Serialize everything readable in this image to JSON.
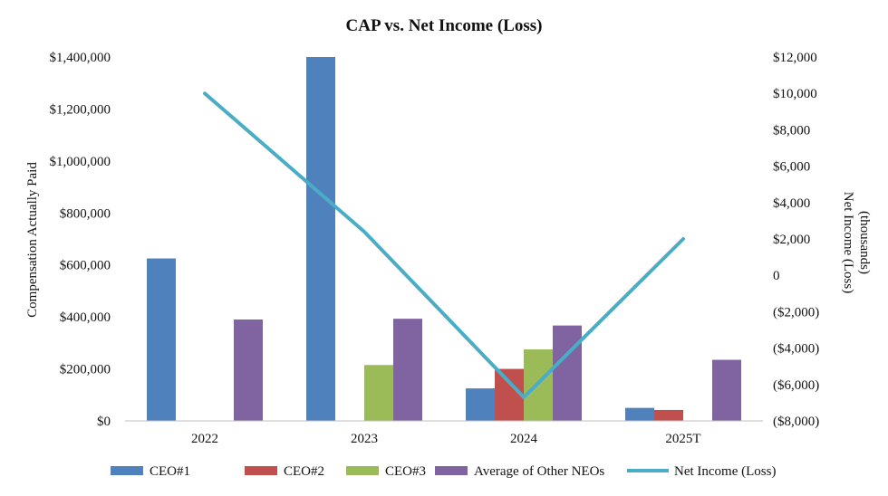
{
  "chart_data": {
    "type": "bar",
    "title": "CAP vs. Net Income (Loss)",
    "categories": [
      "2022",
      "2023",
      "2024",
      "2025T"
    ],
    "ylabel": "Compensation Actually Paid",
    "y2label_line1": "Net Income (Loss)",
    "y2label_line2": "(thousands)",
    "ylim": [
      0,
      1400000
    ],
    "y2lim": [
      -8000,
      12000
    ],
    "yticks": [
      "$0",
      "$200,000",
      "$400,000",
      "$600,000",
      "$800,000",
      "$1,000,000",
      "$1,200,000",
      "$1,400,000"
    ],
    "y2ticks": [
      "($8,000)",
      "($6,000)",
      "($4,000)",
      "($2,000)",
      "0",
      "$2,000",
      "$4,000",
      "$6,000",
      "$8,000",
      "$10,000",
      "$12,000"
    ],
    "series": [
      {
        "name": "CEO#1",
        "color": "#4f81bd",
        "values": [
          625000,
          1400000,
          125000,
          50000
        ]
      },
      {
        "name": "CEO#2",
        "color": "#c0504d",
        "values": [
          null,
          null,
          200000,
          42000
        ]
      },
      {
        "name": "CEO#3",
        "color": "#9bbb59",
        "values": [
          null,
          215000,
          275000,
          null
        ]
      },
      {
        "name": "Average of Other NEOs",
        "color": "#8064a2",
        "values": [
          390000,
          393000,
          367000,
          235000
        ]
      }
    ],
    "line_series": {
      "name": "Net Income (Loss)",
      "color": "#4bacc6",
      "axis": "secondary",
      "values": [
        10000,
        2400,
        -6700,
        2000
      ]
    },
    "legend_position": "bottom",
    "grid": false
  }
}
